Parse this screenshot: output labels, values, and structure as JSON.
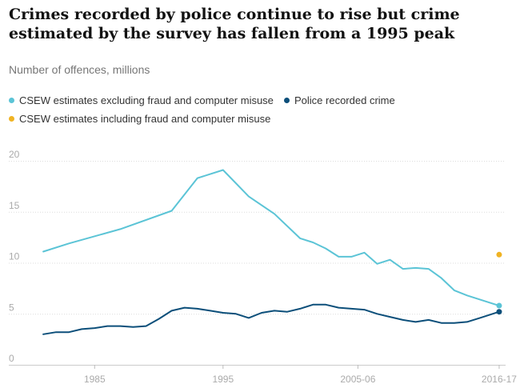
{
  "chart_data": {
    "type": "line",
    "title": "Crimes recorded by police continue to rise but crime estimated by the survey has fallen from a 1995 peak",
    "ylabel": "Number of offences, millions",
    "xlabel": "",
    "ylim": [
      0,
      20
    ],
    "yticks": [
      "0",
      "5",
      "10",
      "15",
      "20"
    ],
    "yticks_values": [
      0,
      5,
      10,
      15,
      20
    ],
    "xticks": [
      {
        "label": "1985",
        "x": 1985
      },
      {
        "label": "1995",
        "x": 1995
      },
      {
        "label": "2005-06",
        "x": 2005.5
      },
      {
        "label": "2016-17",
        "x": 2016.5
      }
    ],
    "xlim": [
      1979.5,
      2017.5
    ],
    "grid": true,
    "legend": [
      {
        "name": "CSEW estimates excluding fraud and computer misuse",
        "color": "#5bc4d6"
      },
      {
        "name": "Police recorded crime",
        "color": "#0c4f7a"
      },
      {
        "name": "CSEW estimates including fraud and computer misuse",
        "color": "#f0b323"
      }
    ],
    "series": [
      {
        "name": "CSEW estimates excluding fraud and computer misuse",
        "color": "#5bc4d6",
        "x": [
          1981,
          1983,
          1987,
          1991,
          1993,
          1995,
          1997,
          1999,
          2001,
          2002,
          2003,
          2004,
          2005,
          2006,
          2007,
          2008,
          2009,
          2010,
          2011,
          2012,
          2013,
          2014,
          2015,
          2016.5
        ],
        "y": [
          11.1,
          11.9,
          13.3,
          15.1,
          18.3,
          19.1,
          16.5,
          14.8,
          12.4,
          12.0,
          11.4,
          10.6,
          10.6,
          11.0,
          9.9,
          10.3,
          9.4,
          9.5,
          9.4,
          8.5,
          7.3,
          6.8,
          6.4,
          5.8
        ]
      },
      {
        "name": "Police recorded crime",
        "color": "#0c4f7a",
        "x": [
          1981,
          1982,
          1983,
          1984,
          1985,
          1986,
          1987,
          1988,
          1989,
          1990,
          1991,
          1992,
          1993,
          1994,
          1995,
          1996,
          1997,
          1998,
          1999,
          2000,
          2001,
          2002,
          2003,
          2004,
          2005,
          2006,
          2007,
          2008,
          2009,
          2010,
          2011,
          2012,
          2013,
          2014,
          2015,
          2016.5
        ],
        "y": [
          3.0,
          3.2,
          3.2,
          3.5,
          3.6,
          3.8,
          3.8,
          3.7,
          3.8,
          4.5,
          5.3,
          5.6,
          5.5,
          5.3,
          5.1,
          5.0,
          4.6,
          5.1,
          5.3,
          5.2,
          5.5,
          5.9,
          5.9,
          5.6,
          5.5,
          5.4,
          5.0,
          4.7,
          4.4,
          4.2,
          4.4,
          4.1,
          4.1,
          4.2,
          4.6,
          5.2
        ]
      },
      {
        "name": "CSEW estimates including fraud and computer misuse",
        "color": "#f0b323",
        "x": [
          2016.5
        ],
        "y": [
          10.8
        ]
      }
    ]
  }
}
